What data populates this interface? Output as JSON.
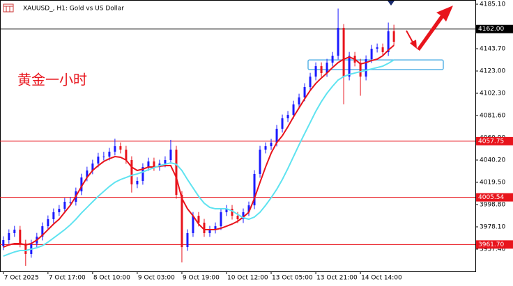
{
  "chart_data": {
    "type": "candlestick",
    "title": "XAUUSD_, H1:  Gold vs US Dollar",
    "annotation": "黄金一小时",
    "up_color": "#1a1aff",
    "down_color": "#e8141c",
    "xlim": [
      -0.6,
      84.6
    ],
    "xticks": [
      {
        "value": 0,
        "label": "7 Oct 2025"
      },
      {
        "value": 8,
        "label": "7 Oct 17:00"
      },
      {
        "value": 16,
        "label": "8 Oct 10:00"
      },
      {
        "value": 24,
        "label": "9 Oct 03:00"
      },
      {
        "value": 32,
        "label": "9 Oct 19:00"
      },
      {
        "value": 40,
        "label": "10 Oct 12:00"
      },
      {
        "value": 48,
        "label": "13 Oct 05:00"
      },
      {
        "value": 56,
        "label": "13 Oct 21:00"
      },
      {
        "value": 64,
        "label": "14 Oct 14:00"
      }
    ],
    "ylim": [
      3936.7,
      4189.0
    ],
    "yticks": [
      {
        "value": 4185.1,
        "label": "4185.10"
      },
      {
        "value": 4143.7,
        "label": "4143.70"
      },
      {
        "value": 4123.0,
        "label": "4123.00"
      },
      {
        "value": 4102.3,
        "label": "4102.30"
      },
      {
        "value": 4081.6,
        "label": "4081.60"
      },
      {
        "value": 4060.9,
        "label": "4060.90"
      },
      {
        "value": 4040.2,
        "label": "4040.20"
      },
      {
        "value": 4019.5,
        "label": "4019.50"
      },
      {
        "value": 3998.8,
        "label": "3998.80"
      },
      {
        "value": 3978.1,
        "label": "3978.10"
      },
      {
        "value": 3957.4,
        "label": "3957.40"
      }
    ],
    "hlines": [
      {
        "value": 4162.0,
        "label": "4162.00",
        "color": "#000000"
      },
      {
        "value": 4057.75,
        "label": "4057.75",
        "color": "#e8141c"
      },
      {
        "value": 4005.54,
        "label": "4005.54",
        "color": "#e8141c"
      },
      {
        "value": 3961.7,
        "label": "3961.70",
        "color": "#e8141c"
      }
    ],
    "zone": {
      "low": 4124.3,
      "high": 4133.3,
      "color": "#5ab4e6"
    },
    "open": [
      3960.0,
      3965.8,
      3972.3,
      3975.5,
      3962.6,
      3952.9,
      3962.6,
      3969.0,
      3978.7,
      3985.2,
      3991.7,
      3994.9,
      4001.4,
      4001.4,
      4011.1,
      4024.0,
      4030.5,
      4037.0,
      4043.4,
      4043.4,
      4048.0,
      4053.1,
      4049.9,
      4040.2,
      4017.6,
      4020.8,
      4033.7,
      4038.9,
      4033.7,
      4037.0,
      4040.2,
      4049.9,
      4007.8,
      3959.3,
      3972.3,
      3988.4,
      3982.0,
      3972.3,
      3975.5,
      3978.7,
      3991.7,
      3994.9,
      3988.4,
      3985.2,
      3991.7,
      3998.1,
      4027.3,
      4049.9,
      4053.1,
      4056.4,
      4069.3,
      4079.0,
      4082.2,
      4091.9,
      4098.4,
      4108.1,
      4117.8,
      4127.5,
      4121.1,
      4130.8,
      4137.2,
      4163.1,
      4117.8,
      4137.2,
      4130.8,
      4117.8,
      4134.0,
      4143.7,
      4145.0,
      4140.5,
      4159.9
    ],
    "high": [
      3969.3,
      3975.8,
      3979.0,
      3979.0,
      3966.1,
      3966.1,
      3972.5,
      3982.2,
      3988.7,
      3995.2,
      3998.4,
      4004.9,
      4005.9,
      4014.6,
      4027.5,
      4034.0,
      4040.5,
      4046.9,
      4047.9,
      4051.5,
      4060.0,
      4056.6,
      4053.4,
      4043.7,
      4024.3,
      4037.2,
      4042.4,
      4042.4,
      4040.5,
      4043.7,
      4059.0,
      4053.4,
      4011.3,
      3975.8,
      3991.9,
      3991.9,
      3985.5,
      3979.0,
      3982.2,
      3995.2,
      3998.4,
      3998.4,
      3991.9,
      3995.2,
      4001.6,
      4030.8,
      4053.4,
      4056.6,
      4059.9,
      4072.8,
      4082.5,
      4085.7,
      4095.4,
      4101.9,
      4111.6,
      4121.3,
      4131.0,
      4131.0,
      4134.3,
      4140.7,
      4181.0,
      4166.6,
      4140.7,
      4140.7,
      4134.3,
      4137.5,
      4147.2,
      4148.5,
      4148.5,
      4168.0,
      4166.0
    ],
    "low": [
      3956.5,
      3962.3,
      3968.8,
      3959.1,
      3941.9,
      3949.4,
      3959.1,
      3965.5,
      3975.2,
      3981.7,
      3988.2,
      3991.4,
      3997.9,
      3997.9,
      4007.6,
      4020.5,
      4027.0,
      4033.5,
      4039.9,
      4039.9,
      4044.5,
      4046.4,
      4036.7,
      4010.0,
      4014.1,
      4017.3,
      4030.2,
      4030.2,
      4030.2,
      4033.5,
      4036.7,
      4004.3,
      3945.0,
      3955.8,
      3968.8,
      3978.5,
      3968.8,
      3968.8,
      3972.0,
      3975.2,
      3988.2,
      3984.9,
      3981.7,
      3981.7,
      3988.2,
      3994.6,
      4023.8,
      4046.4,
      4049.6,
      4052.9,
      4065.8,
      4075.5,
      4078.7,
      4088.4,
      4094.9,
      4104.6,
      4114.3,
      4117.6,
      4117.6,
      4127.3,
      4133.7,
      4092.0,
      4114.3,
      4127.3,
      4100.0,
      4114.3,
      4130.5,
      4140.2,
      4137.0,
      4137.0,
      4146.7
    ],
    "close": [
      3965.8,
      3972.3,
      3975.5,
      3962.6,
      3952.9,
      3962.6,
      3969.0,
      3978.7,
      3985.2,
      3991.7,
      3994.9,
      4001.4,
      4001.4,
      4011.1,
      4024.0,
      4030.5,
      4037.0,
      4043.4,
      4043.4,
      4048.0,
      4053.1,
      4049.9,
      4040.2,
      4017.6,
      4020.8,
      4033.7,
      4038.9,
      4033.7,
      4037.0,
      4040.2,
      4049.9,
      4007.8,
      3959.3,
      3972.3,
      3988.4,
      3982.0,
      3972.3,
      3975.5,
      3978.7,
      3991.7,
      3994.9,
      3988.4,
      3985.2,
      3991.7,
      3998.1,
      4027.3,
      4049.9,
      4053.1,
      4056.4,
      4069.3,
      4079.0,
      4082.2,
      4091.9,
      4098.4,
      4108.1,
      4117.8,
      4127.5,
      4121.1,
      4130.8,
      4137.2,
      4163.1,
      4117.8,
      4137.2,
      4130.8,
      4117.8,
      4134.0,
      4143.7,
      4145.0,
      4140.5,
      4159.9,
      4150.2
    ],
    "series": [
      {
        "color": "#e8141c",
        "values": [
          3959.3,
          3961.3,
          3962.6,
          3962.6,
          3961.3,
          3962.6,
          3965.8,
          3970.3,
          3975.5,
          3980.7,
          3985.2,
          3991.7,
          3998.1,
          4006.5,
          4015.6,
          4024.0,
          4030.5,
          4035.0,
          4038.9,
          4041.5,
          4043.4,
          4042.8,
          4040.2,
          4033.7,
          4030.5,
          4031.8,
          4033.7,
          4033.7,
          4034.4,
          4035.0,
          4035.0,
          4024.0,
          4004.6,
          3994.9,
          3988.4,
          3980.7,
          3975.5,
          3975.5,
          3975.5,
          3976.8,
          3978.7,
          3980.7,
          3983.3,
          3987.2,
          3991.7,
          4004.6,
          4019.5,
          4033.7,
          4046.7,
          4056.4,
          4062.8,
          4071.2,
          4080.3,
          4088.7,
          4097.1,
          4104.9,
          4111.4,
          4116.5,
          4121.1,
          4126.2,
          4130.8,
          4134.0,
          4135.9,
          4134.0,
          4129.5,
          4130.8,
          4132.7,
          4134.0,
          4137.2,
          4142.4,
          4146.9
        ]
      },
      {
        "color": "#5fe3f0",
        "values": [
          3950.9,
          3952.9,
          3954.8,
          3956.1,
          3956.1,
          3957.4,
          3958.7,
          3960.6,
          3963.9,
          3967.7,
          3971.6,
          3975.5,
          3980.0,
          3985.2,
          3991.0,
          3996.2,
          4001.4,
          4006.5,
          4011.1,
          4015.6,
          4019.5,
          4022.1,
          4024.0,
          4026.0,
          4027.3,
          4029.2,
          4031.2,
          4033.1,
          4035.0,
          4036.3,
          4037.6,
          4036.3,
          4030.5,
          4022.1,
          4014.3,
          4006.5,
          4000.1,
          3996.2,
          3994.9,
          3994.9,
          3994.9,
          3993.0,
          3989.7,
          3986.5,
          3985.2,
          3987.2,
          3991.7,
          3998.1,
          4005.2,
          4013.0,
          4022.1,
          4032.4,
          4043.4,
          4054.4,
          4064.8,
          4075.1,
          4085.5,
          4094.5,
          4102.3,
          4108.8,
          4114.6,
          4117.8,
          4119.8,
          4121.1,
          4122.4,
          4123.6,
          4124.9,
          4126.2,
          4127.5,
          4130.1,
          4133.3
        ]
      }
    ]
  }
}
